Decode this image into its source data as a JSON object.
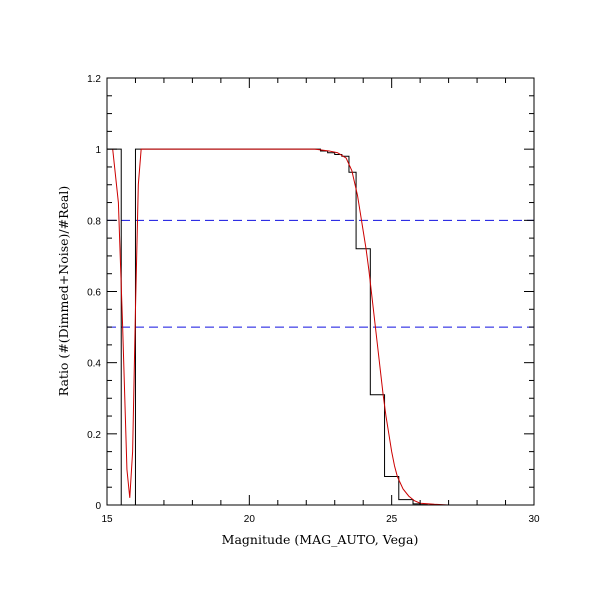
{
  "chart_data": {
    "type": "line",
    "title": "",
    "xlabel": "Magnitude (MAG_AUTO, Vega)",
    "ylabel": "Ratio (#(Dimmed+Noise)/#Real)",
    "xlim": [
      15,
      30
    ],
    "ylim": [
      0,
      1.2
    ],
    "x_ticks": [
      15,
      20,
      25,
      30
    ],
    "y_ticks": [
      0,
      0.2,
      0.4,
      0.6,
      0.8,
      1,
      1.2
    ],
    "x_tick_labels": [
      "15",
      "20",
      "25",
      "30"
    ],
    "y_tick_labels": [
      "0",
      "0.2",
      "0.4",
      "0.6",
      "0.8",
      "1",
      "1.2"
    ],
    "grid": false,
    "reference_lines": [
      {
        "y": 0.8,
        "style": "dashed",
        "color": "#1010e0"
      },
      {
        "y": 0.5,
        "style": "dashed",
        "color": "#1010e0"
      }
    ],
    "series": [
      {
        "style": "step",
        "color": "#000000",
        "bin_edges": [
          15.0,
          15.5,
          15.75,
          16.0,
          22.5,
          22.75,
          23.0,
          23.25,
          23.5,
          23.75,
          24.0,
          24.25,
          24.5,
          24.75,
          25.0,
          25.25,
          25.5,
          25.75,
          26.0,
          26.25,
          30.0
        ],
        "values": [
          1.0,
          0.0,
          0.0,
          1.0,
          0.995,
          0.99,
          0.985,
          0.98,
          0.935,
          0.72,
          0.72,
          0.31,
          0.31,
          0.08,
          0.08,
          0.015,
          0.015,
          0.003,
          0.001,
          0.0
        ]
      },
      {
        "style": "line",
        "color": "#cc0000",
        "x": [
          15.2,
          15.4,
          15.55,
          15.7,
          15.8,
          15.9,
          16.0,
          16.1,
          16.2,
          22.3,
          22.5,
          22.8,
          23.1,
          23.4,
          23.6,
          23.8,
          23.9,
          24.0,
          24.1,
          24.2,
          24.3,
          24.4,
          24.5,
          24.6,
          24.7,
          24.8,
          24.9,
          25.0,
          25.1,
          25.2,
          25.4,
          25.6,
          25.8,
          26.0,
          26.5,
          27.0,
          30.0
        ],
        "y": [
          1.0,
          0.85,
          0.5,
          0.1,
          0.02,
          0.15,
          0.55,
          0.9,
          1.0,
          1.0,
          0.998,
          0.995,
          0.99,
          0.975,
          0.94,
          0.87,
          0.82,
          0.77,
          0.72,
          0.66,
          0.59,
          0.52,
          0.45,
          0.38,
          0.31,
          0.25,
          0.2,
          0.15,
          0.11,
          0.08,
          0.045,
          0.025,
          0.012,
          0.005,
          0.002,
          0.0,
          0.0
        ]
      }
    ]
  }
}
